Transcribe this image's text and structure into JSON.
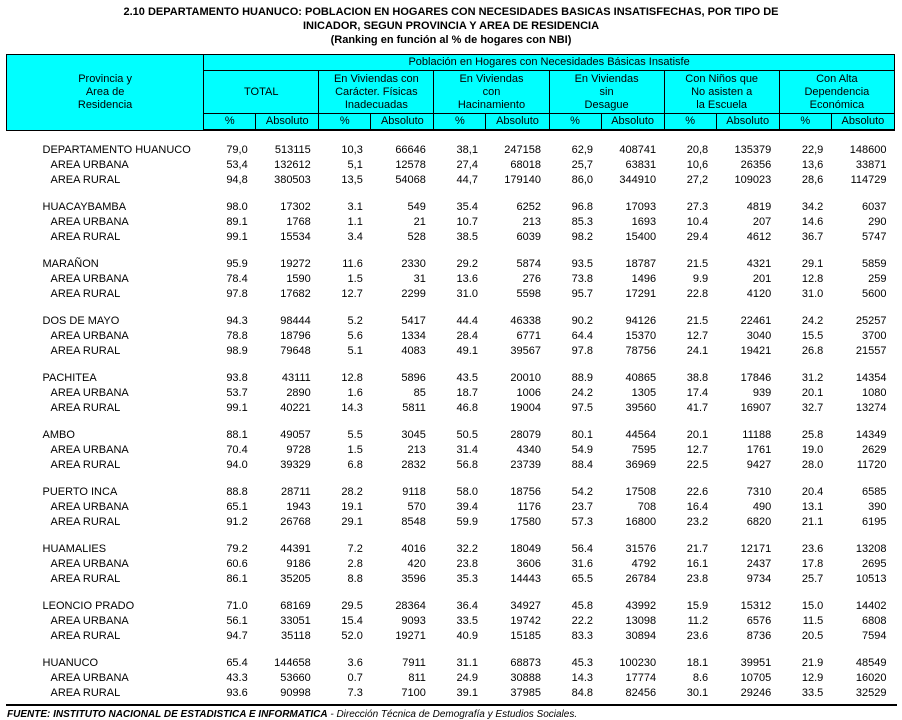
{
  "title": {
    "line1": "2.10  DEPARTAMENTO HUANUCO:  POBLACION EN HOGARES CON NECESIDADES BASICAS INSATISFECHAS, POR TIPO DE",
    "line2": "INICADOR, SEGUN PROVINCIA Y AREA DE RESIDENCIA",
    "line3": "(Ranking en función al % de hogares con NBI)"
  },
  "colors": {
    "header_bg": "#00FFFF",
    "border": "#000000",
    "text": "#000000"
  },
  "table": {
    "header": {
      "stub": {
        "lines": [
          "Provincia  y",
          "Area de",
          "Residencia"
        ]
      },
      "band": "Población en Hogares con Necesidades Básicas Insatisfe",
      "groups": [
        {
          "lines": [
            "TOTAL"
          ]
        },
        {
          "lines": [
            "En Viviendas con",
            "Carácter. Físicas",
            "Inadecuadas"
          ]
        },
        {
          "lines": [
            "En Viviendas",
            "con",
            "Hacinamiento"
          ]
        },
        {
          "lines": [
            "En Viviendas",
            "sin",
            "Desague"
          ]
        },
        {
          "lines": [
            "Con Niños que",
            "No asisten a",
            "la Escuela"
          ]
        },
        {
          "lines": [
            "Con Alta",
            "Dependencia",
            "Económica"
          ]
        }
      ],
      "sub": [
        "%",
        "Absoluto",
        "%",
        "Absoluto",
        "%",
        "Absoluto",
        "%",
        "Absoluto",
        "%",
        "Absoluto",
        "%",
        "Absoluto"
      ]
    },
    "rows": [
      {
        "spacer": true
      },
      {
        "label": "DEPARTAMENTO HUANUCO",
        "indent": false,
        "values": [
          "79,0",
          "513115",
          "10,3",
          "66646",
          "38,1",
          "247158",
          "62,9",
          "408741",
          "20,8",
          "135379",
          "22,9",
          "148600"
        ]
      },
      {
        "label": "AREA URBANA",
        "indent": true,
        "values": [
          "53,4",
          "132612",
          "5,1",
          "12578",
          "27,4",
          "68018",
          "25,7",
          "63831",
          "10,6",
          "26356",
          "13,6",
          "33871"
        ]
      },
      {
        "label": "AREA RURAL",
        "indent": true,
        "values": [
          "94,8",
          "380503",
          "13,5",
          "54068",
          "44,7",
          "179140",
          "86,0",
          "344910",
          "27,2",
          "109023",
          "28,6",
          "114729"
        ]
      },
      {
        "spacer": true
      },
      {
        "label": "HUACAYBAMBA",
        "indent": false,
        "values": [
          "98.0",
          "17302",
          "3.1",
          "549",
          "35.4",
          "6252",
          "96.8",
          "17093",
          "27.3",
          "4819",
          "34.2",
          "6037"
        ]
      },
      {
        "label": "AREA URBANA",
        "indent": true,
        "values": [
          "89.1",
          "1768",
          "1.1",
          "21",
          "10.7",
          "213",
          "85.3",
          "1693",
          "10.4",
          "207",
          "14.6",
          "290"
        ]
      },
      {
        "label": "AREA RURAL",
        "indent": true,
        "values": [
          "99.1",
          "15534",
          "3.4",
          "528",
          "38.5",
          "6039",
          "98.2",
          "15400",
          "29.4",
          "4612",
          "36.7",
          "5747"
        ]
      },
      {
        "spacer": true
      },
      {
        "label": "MARAÑON",
        "indent": false,
        "values": [
          "95.9",
          "19272",
          "11.6",
          "2330",
          "29.2",
          "5874",
          "93.5",
          "18787",
          "21.5",
          "4321",
          "29.1",
          "5859"
        ]
      },
      {
        "label": "AREA URBANA",
        "indent": true,
        "values": [
          "78.4",
          "1590",
          "1.5",
          "31",
          "13.6",
          "276",
          "73.8",
          "1496",
          "9.9",
          "201",
          "12.8",
          "259"
        ]
      },
      {
        "label": "AREA RURAL",
        "indent": true,
        "values": [
          "97.8",
          "17682",
          "12.7",
          "2299",
          "31.0",
          "5598",
          "95.7",
          "17291",
          "22.8",
          "4120",
          "31.0",
          "5600"
        ]
      },
      {
        "spacer": true
      },
      {
        "label": "DOS DE MAYO",
        "indent": false,
        "values": [
          "94.3",
          "98444",
          "5.2",
          "5417",
          "44.4",
          "46338",
          "90.2",
          "94126",
          "21.5",
          "22461",
          "24.2",
          "25257"
        ]
      },
      {
        "label": "AREA URBANA",
        "indent": true,
        "values": [
          "78.8",
          "18796",
          "5.6",
          "1334",
          "28.4",
          "6771",
          "64.4",
          "15370",
          "12.7",
          "3040",
          "15.5",
          "3700"
        ]
      },
      {
        "label": "AREA RURAL",
        "indent": true,
        "values": [
          "98.9",
          "79648",
          "5.1",
          "4083",
          "49.1",
          "39567",
          "97.8",
          "78756",
          "24.1",
          "19421",
          "26.8",
          "21557"
        ]
      },
      {
        "spacer": true
      },
      {
        "label": "PACHITEA",
        "indent": false,
        "values": [
          "93.8",
          "43111",
          "12.8",
          "5896",
          "43.5",
          "20010",
          "88.9",
          "40865",
          "38.8",
          "17846",
          "31.2",
          "14354"
        ]
      },
      {
        "label": "AREA URBANA",
        "indent": true,
        "values": [
          "53.7",
          "2890",
          "1.6",
          "85",
          "18.7",
          "1006",
          "24.2",
          "1305",
          "17.4",
          "939",
          "20.1",
          "1080"
        ]
      },
      {
        "label": "AREA RURAL",
        "indent": true,
        "values": [
          "99.1",
          "40221",
          "14.3",
          "5811",
          "46.8",
          "19004",
          "97.5",
          "39560",
          "41.7",
          "16907",
          "32.7",
          "13274"
        ]
      },
      {
        "spacer": true
      },
      {
        "label": "AMBO",
        "indent": false,
        "values": [
          "88.1",
          "49057",
          "5.5",
          "3045",
          "50.5",
          "28079",
          "80.1",
          "44564",
          "20.1",
          "11188",
          "25.8",
          "14349"
        ]
      },
      {
        "label": "AREA URBANA",
        "indent": true,
        "values": [
          "70.4",
          "9728",
          "1.5",
          "213",
          "31.4",
          "4340",
          "54.9",
          "7595",
          "12.7",
          "1761",
          "19.0",
          "2629"
        ]
      },
      {
        "label": "AREA RURAL",
        "indent": true,
        "values": [
          "94.0",
          "39329",
          "6.8",
          "2832",
          "56.8",
          "23739",
          "88.4",
          "36969",
          "22.5",
          "9427",
          "28.0",
          "11720"
        ]
      },
      {
        "spacer": true
      },
      {
        "label": "PUERTO INCA",
        "indent": false,
        "values": [
          "88.8",
          "28711",
          "28.2",
          "9118",
          "58.0",
          "18756",
          "54.2",
          "17508",
          "22.6",
          "7310",
          "20.4",
          "6585"
        ]
      },
      {
        "label": "AREA URBANA",
        "indent": true,
        "values": [
          "65.1",
          "1943",
          "19.1",
          "570",
          "39.4",
          "1176",
          "23.7",
          "708",
          "16.4",
          "490",
          "13.1",
          "390"
        ]
      },
      {
        "label": "AREA RURAL",
        "indent": true,
        "values": [
          "91.2",
          "26768",
          "29.1",
          "8548",
          "59.9",
          "17580",
          "57.3",
          "16800",
          "23.2",
          "6820",
          "21.1",
          "6195"
        ]
      },
      {
        "spacer": true
      },
      {
        "label": "HUAMALIES",
        "indent": false,
        "values": [
          "79.2",
          "44391",
          "7.2",
          "4016",
          "32.2",
          "18049",
          "56.4",
          "31576",
          "21.7",
          "12171",
          "23.6",
          "13208"
        ]
      },
      {
        "label": "AREA URBANA",
        "indent": true,
        "values": [
          "60.6",
          "9186",
          "2.8",
          "420",
          "23.8",
          "3606",
          "31.6",
          "4792",
          "16.1",
          "2437",
          "17.8",
          "2695"
        ]
      },
      {
        "label": "AREA RURAL",
        "indent": true,
        "values": [
          "86.1",
          "35205",
          "8.8",
          "3596",
          "35.3",
          "14443",
          "65.5",
          "26784",
          "23.8",
          "9734",
          "25.7",
          "10513"
        ]
      },
      {
        "spacer": true
      },
      {
        "label": "LEONCIO PRADO",
        "indent": false,
        "values": [
          "71.0",
          "68169",
          "29.5",
          "28364",
          "36.4",
          "34927",
          "45.8",
          "43992",
          "15.9",
          "15312",
          "15.0",
          "14402"
        ]
      },
      {
        "label": "AREA URBANA",
        "indent": true,
        "values": [
          "56.1",
          "33051",
          "15.4",
          "9093",
          "33.5",
          "19742",
          "22.2",
          "13098",
          "11.2",
          "6576",
          "11.5",
          "6808"
        ]
      },
      {
        "label": "AREA RURAL",
        "indent": true,
        "values": [
          "94.7",
          "35118",
          "52.0",
          "19271",
          "40.9",
          "15185",
          "83.3",
          "30894",
          "23.6",
          "8736",
          "20.5",
          "7594"
        ]
      },
      {
        "spacer": true
      },
      {
        "label": "HUANUCO",
        "indent": false,
        "values": [
          "65.4",
          "144658",
          "3.6",
          "7911",
          "31.1",
          "68873",
          "45.3",
          "100230",
          "18.1",
          "39951",
          "21.9",
          "48549"
        ]
      },
      {
        "label": "AREA URBANA",
        "indent": true,
        "values": [
          "43.3",
          "53660",
          "0.7",
          "811",
          "24.9",
          "30888",
          "14.3",
          "17774",
          "8.6",
          "10705",
          "12.9",
          "16020"
        ]
      },
      {
        "label": "AREA RURAL",
        "indent": true,
        "values": [
          "93.6",
          "90998",
          "7.3",
          "7100",
          "39.1",
          "37985",
          "84.8",
          "82456",
          "30.1",
          "29246",
          "33.5",
          "32529"
        ]
      }
    ]
  },
  "footer": {
    "source_bold": "FUENTE: INSTITUTO NACIONAL DE ESTADISTICA E INFORMATICA",
    "source_rest": " - Dirección Técnica de Demografía y Estudios Sociales."
  }
}
